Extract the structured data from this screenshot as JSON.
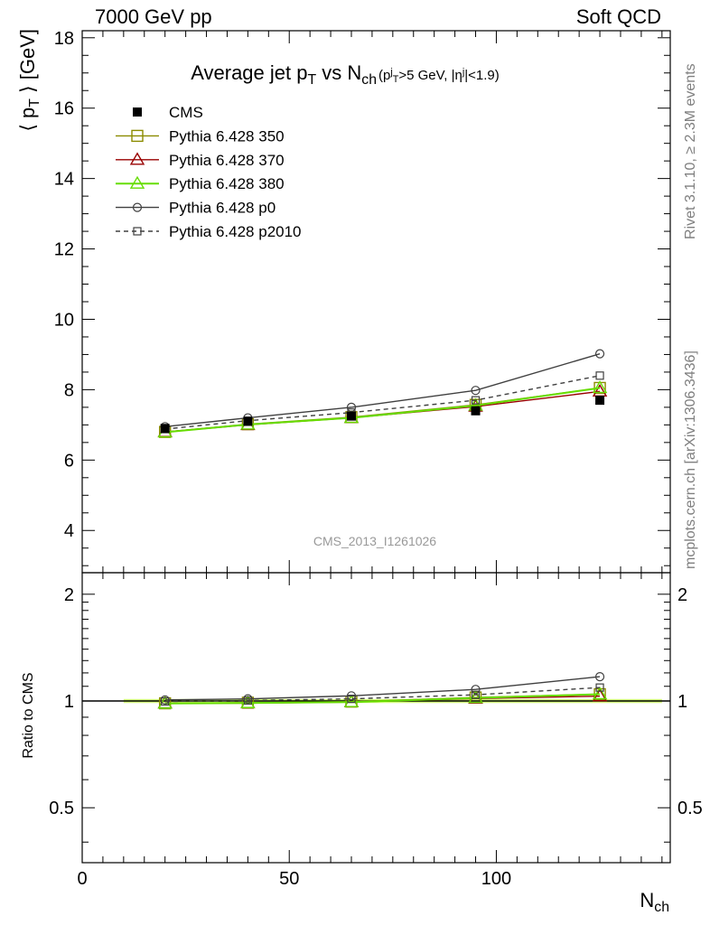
{
  "header": {
    "left": "7000 GeV pp",
    "right": "Soft QCD"
  },
  "side_labels": {
    "rivet": "Rivet 3.1.10, ≥ 2.3M events",
    "mcplots": "mcplots.cern.ch [arXiv:1306.3436]"
  },
  "colors": {
    "cms": "#000000",
    "p350": "#8b8b00",
    "p370": "#990000",
    "p380": "#66dd00",
    "p0": "#404040",
    "p2010": "#404040",
    "band": "#ccff66"
  },
  "chart_data": [
    {
      "type": "line",
      "title_parts": {
        "main": "Average jet p",
        "sub1": "T",
        "mid": " vs N",
        "sub2": "ch",
        "cond_a": " (p",
        "cond_sup1": "j",
        "cond_sub1": "T",
        "cond_b": ">5 GeV, |η",
        "cond_sup2": "j",
        "cond_c": "|<1.9)"
      },
      "ylabel_parts": {
        "a": "⟨ p",
        "sub": "T",
        "b": " ⟩ [GeV]"
      },
      "watermark": "CMS_2013_I1261026",
      "xlim": [
        0,
        142
      ],
      "ylim": [
        2.8,
        18.2
      ],
      "y_ticks": [
        4,
        6,
        8,
        10,
        12,
        14,
        16,
        18
      ],
      "x": [
        20,
        40,
        65,
        95,
        125
      ],
      "series": [
        {
          "name": "CMS",
          "style": "cms",
          "values": [
            6.9,
            7.1,
            7.25,
            7.4,
            7.7
          ]
        },
        {
          "name": "Pythia 6.428 350",
          "style": "p350",
          "values": [
            6.8,
            7.02,
            7.22,
            7.57,
            8.05
          ]
        },
        {
          "name": "Pythia 6.428 370",
          "style": "p370",
          "values": [
            6.8,
            7.0,
            7.2,
            7.52,
            7.95
          ]
        },
        {
          "name": "Pythia 6.428 380",
          "style": "p380",
          "values": [
            6.79,
            7.01,
            7.2,
            7.55,
            8.05
          ]
        },
        {
          "name": "Pythia 6.428 p0",
          "style": "p0",
          "values": [
            6.95,
            7.2,
            7.5,
            7.98,
            9.02
          ]
        },
        {
          "name": "Pythia 6.428 p2010",
          "style": "p2010",
          "values": [
            6.88,
            7.12,
            7.35,
            7.7,
            8.4
          ]
        }
      ]
    },
    {
      "type": "line",
      "ylabel": "Ratio to CMS",
      "xlabel_parts": {
        "a": "N",
        "sub": "ch"
      },
      "xlim": [
        0,
        142
      ],
      "ylim": [
        0.35,
        2.3
      ],
      "log_y": true,
      "y_ticks": [
        0.5,
        1,
        2
      ],
      "y_tick_labels": [
        "0.5",
        "1",
        "2"
      ],
      "x_ticks": [
        0,
        50,
        100
      ],
      "x_tick_labels": [
        "0",
        "50",
        "100"
      ],
      "x": [
        20,
        40,
        65,
        95,
        125
      ],
      "series": [
        {
          "name": "Pythia 6.428 350",
          "style": "p350",
          "values": [
            0.985,
            0.989,
            0.996,
            1.023,
            1.045
          ]
        },
        {
          "name": "Pythia 6.428 370",
          "style": "p370",
          "values": [
            0.985,
            0.986,
            0.993,
            1.016,
            1.032
          ]
        },
        {
          "name": "Pythia 6.428 380",
          "style": "p380",
          "values": [
            0.984,
            0.987,
            0.993,
            1.02,
            1.045
          ]
        },
        {
          "name": "Pythia 6.428 p0",
          "style": "p0",
          "values": [
            1.007,
            1.014,
            1.034,
            1.078,
            1.171
          ]
        },
        {
          "name": "Pythia 6.428 p2010",
          "style": "p2010",
          "values": [
            0.997,
            1.003,
            1.014,
            1.041,
            1.091
          ]
        }
      ]
    }
  ]
}
